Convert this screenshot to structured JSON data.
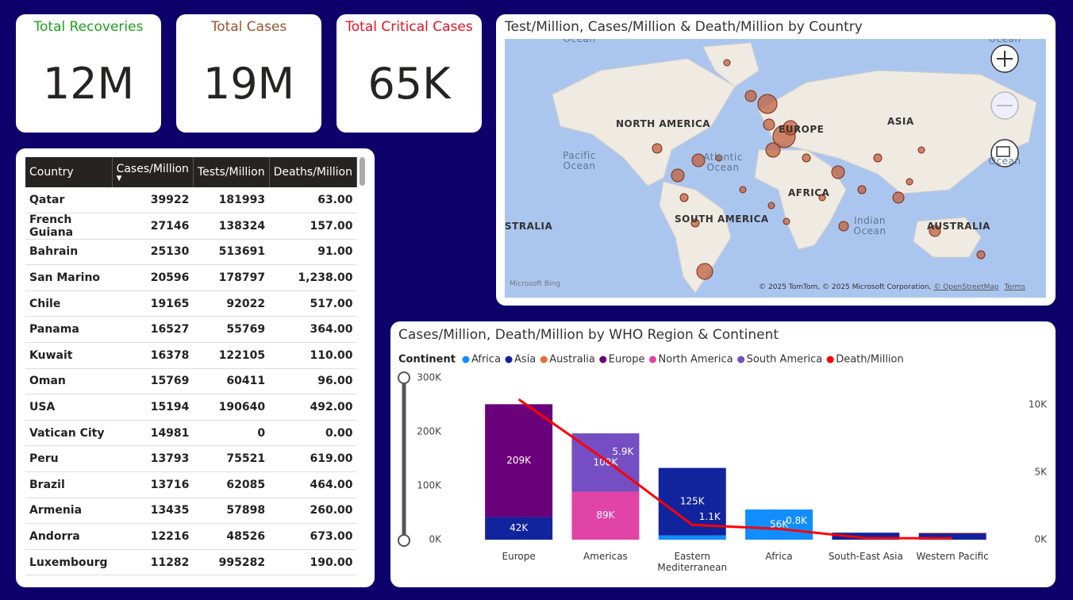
{
  "cards": [
    {
      "title": "Total Recoveries",
      "value": "12M",
      "color": "#1aa31a"
    },
    {
      "title": "Total Cases",
      "value": "19M",
      "color": "#a0522d"
    },
    {
      "title": "Total Critical Cases",
      "value": "65K",
      "color": "#e81123"
    }
  ],
  "table": {
    "columns": [
      "Country",
      "Cases/Million",
      "Tests/Million",
      "Deaths/Million"
    ],
    "rows": [
      [
        "Qatar",
        39922,
        181993,
        "63.00"
      ],
      [
        "French Guiana",
        27146,
        138324,
        "157.00"
      ],
      [
        "Bahrain",
        25130,
        513691,
        "91.00"
      ],
      [
        "San Marino",
        20596,
        178797,
        "1,238.00"
      ],
      [
        "Chile",
        19165,
        92022,
        "517.00"
      ],
      [
        "Panama",
        16527,
        55769,
        "364.00"
      ],
      [
        "Kuwait",
        16378,
        122105,
        "110.00"
      ],
      [
        "Oman",
        15769,
        60411,
        "96.00"
      ],
      [
        "USA",
        15194,
        190640,
        "492.00"
      ],
      [
        "Vatican City",
        14981,
        0,
        "0.00"
      ],
      [
        "Peru",
        13793,
        75521,
        "619.00"
      ],
      [
        "Brazil",
        13716,
        62085,
        "464.00"
      ],
      [
        "Armenia",
        13435,
        57898,
        "260.00"
      ],
      [
        "Andorra",
        12216,
        48526,
        "673.00"
      ],
      [
        "Luxembourg",
        11282,
        995282,
        "190.00"
      ]
    ]
  },
  "map": {
    "title": "Test/Million, Cases/Million & Death/Million by Country",
    "labels": [
      "NORTH AMERICA",
      "ASIA",
      "EUROPE",
      "AFRICA",
      "SOUTH AMERICA",
      "STRALIA",
      "AUSTRALIA",
      "Pacific Ocean",
      "Atlantic Ocean",
      "Indian Ocean",
      "Ocean",
      "Ocean",
      "Ocean"
    ],
    "attribution": "© 2025 TomTom, © 2025 Microsoft Corporation,",
    "osm": "© OpenStreetMap",
    "terms": "Terms",
    "brand": "Microsoft Bing"
  },
  "chart_data": {
    "type": "bar",
    "title": "Cases/Million, Death/Million by WHO Region & Continent",
    "legend_title": "Continent",
    "categories": [
      "Europe",
      "Americas",
      "Eastern Mediterranean",
      "Africa",
      "South-East Asia",
      "Western Pacific"
    ],
    "series": [
      {
        "name": "Africa",
        "color": "#118dff",
        "values": [
          null,
          null,
          8000,
          56000,
          null,
          null
        ],
        "value_labels": [
          null,
          null,
          null,
          "56K",
          null,
          null
        ]
      },
      {
        "name": "Asia",
        "color": "#12239e",
        "values": [
          42000,
          null,
          125000,
          null,
          13000,
          12000
        ],
        "value_labels": [
          "42K",
          null,
          "125K",
          null,
          null,
          null
        ]
      },
      {
        "name": "Australia",
        "color": "#e66c37",
        "values": [
          null,
          null,
          null,
          null,
          null,
          1000
        ]
      },
      {
        "name": "Europe",
        "color": "#6b007b",
        "values": [
          209000,
          null,
          null,
          null,
          null,
          null
        ],
        "value_labels": [
          "209K",
          null,
          null,
          null,
          null,
          null
        ]
      },
      {
        "name": "North America",
        "color": "#e044a7",
        "values": [
          null,
          89000,
          null,
          null,
          null,
          null
        ],
        "value_labels": [
          null,
          "89K",
          null,
          null,
          null,
          null
        ]
      },
      {
        "name": "South America",
        "color": "#744ec2",
        "values": [
          null,
          108000,
          null,
          null,
          null,
          null
        ],
        "value_labels": [
          null,
          "108K",
          null,
          null,
          null,
          null
        ]
      },
      {
        "name": "Death/Million",
        "color": "#ff0000",
        "type": "line",
        "axis": "y2",
        "values": [
          10400,
          5900,
          1100,
          800,
          120,
          100
        ],
        "value_labels": [
          null,
          "5.9K",
          "1.1K",
          "0.8K",
          null,
          null
        ]
      }
    ],
    "ylim": [
      0,
      300000
    ],
    "yticks": [
      {
        "value": 0,
        "label": "0K"
      },
      {
        "value": 100000,
        "label": "100K"
      },
      {
        "value": 200000,
        "label": "200K"
      },
      {
        "value": 300000,
        "label": "300K"
      }
    ],
    "y2lim": [
      0,
      12000
    ],
    "y2ticks": [
      {
        "value": 0,
        "label": "0K"
      },
      {
        "value": 5000,
        "label": "5K"
      },
      {
        "value": 10000,
        "label": "10K"
      }
    ]
  }
}
